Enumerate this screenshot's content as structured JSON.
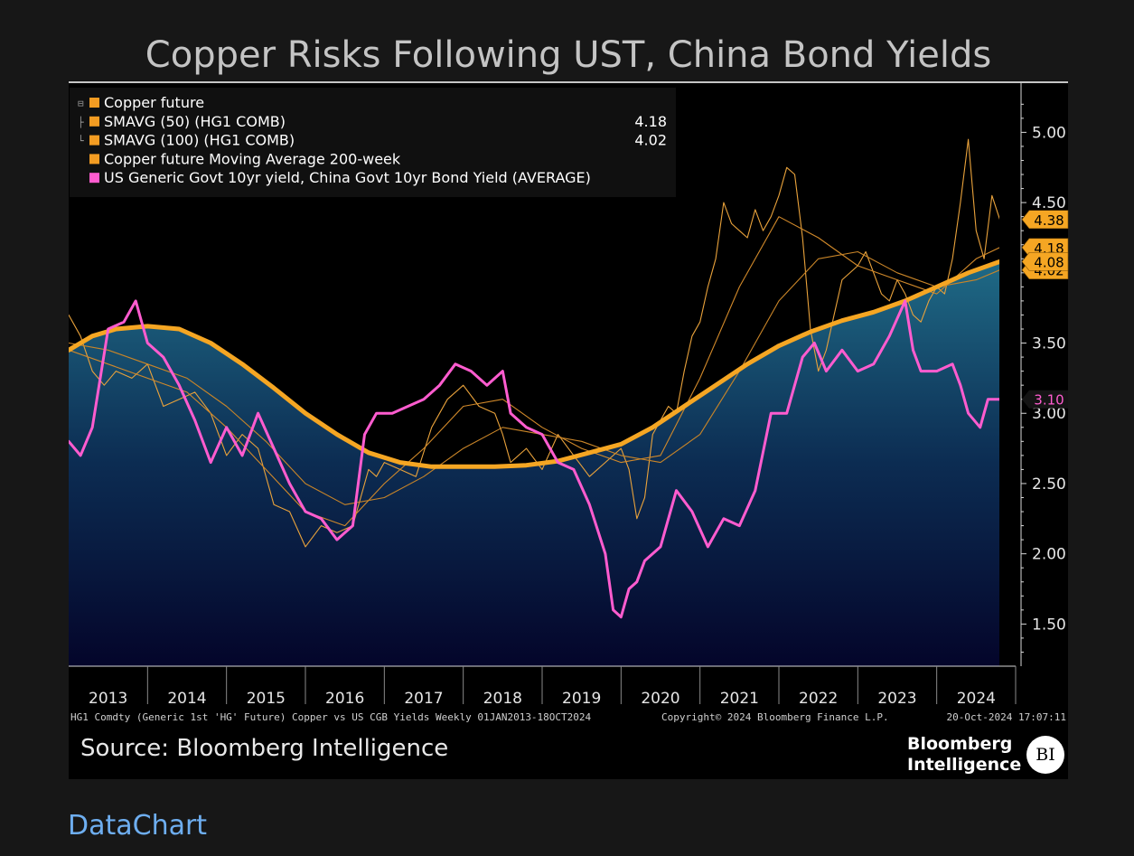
{
  "title": "Copper Risks Following UST, China Bond Yields",
  "footer": {
    "info_left": "HG1 Comdty (Generic 1st 'HG' Future) Copper vs US CGB Yields  Weekly 01JAN2013-18OCT2024",
    "info_mid": "Copyright© 2024 Bloomberg Finance L.P.",
    "info_right": "20-Oct-2024 17:07:11",
    "source": "Source: Bloomberg Intelligence",
    "brand_line1": "Bloomberg",
    "brand_line2": "Intelligence",
    "logo": "BI",
    "link": "DataChart"
  },
  "legend": [
    {
      "label": "Copper future",
      "value": "",
      "color": "#f39c22",
      "bracket": "⊟"
    },
    {
      "label": "SMAVG (50) (HG1 COMB)",
      "value": "4.18",
      "color": "#f39c22",
      "bracket": "├"
    },
    {
      "label": "SMAVG (100) (HG1 COMB)",
      "value": "4.02",
      "color": "#f39c22",
      "bracket": "└"
    },
    {
      "label": "Copper future Moving Average 200-week",
      "value": "",
      "color": "#f39c22",
      "bracket": ""
    },
    {
      "label": "US Generic Govt 10yr yield, China Govt 10yr Bond Yield (AVERAGE)",
      "value": "",
      "color": "#ff5ccf",
      "bracket": ""
    }
  ],
  "chart_data": {
    "type": "line",
    "title": "Copper Risks Following UST, China Bond Yields",
    "x_categories": [
      "2013",
      "2014",
      "2015",
      "2016",
      "2017",
      "2018",
      "2019",
      "2020",
      "2021",
      "2022",
      "2023",
      "2024"
    ],
    "ylim": [
      1.2,
      5.35
    ],
    "y_ticks": [
      1.5,
      2.0,
      2.5,
      3.0,
      3.5,
      4.0,
      4.5,
      5.0
    ],
    "y_tick_labels": [
      "1.50",
      "2.00",
      "2.50",
      "3.00",
      "3.50",
      "4.00",
      "4.50",
      "5.00"
    ],
    "grid": false,
    "legend_position": "top-left",
    "end_labels": [
      {
        "text": "4.38",
        "value": 4.38,
        "kind": "orange"
      },
      {
        "text": "4.18",
        "value": 4.18,
        "kind": "orange"
      },
      {
        "text": "4.02",
        "value": 4.02,
        "kind": "orange"
      },
      {
        "text": "4.08",
        "value": 4.08,
        "kind": "orange"
      },
      {
        "text": "3.10",
        "value": 3.1,
        "kind": "pink"
      }
    ],
    "series": [
      {
        "name": "Copper future",
        "color": "#e9a23b",
        "width": 1.1,
        "x": [
          2013.0,
          2013.15,
          2013.3,
          2013.45,
          2013.6,
          2013.8,
          2014.0,
          2014.2,
          2014.4,
          2014.6,
          2014.8,
          2015.0,
          2015.2,
          2015.4,
          2015.6,
          2015.8,
          2016.0,
          2016.2,
          2016.4,
          2016.6,
          2016.8,
          2016.9,
          2017.0,
          2017.2,
          2017.4,
          2017.6,
          2017.8,
          2018.0,
          2018.2,
          2018.4,
          2018.5,
          2018.6,
          2018.8,
          2019.0,
          2019.2,
          2019.4,
          2019.6,
          2019.8,
          2020.0,
          2020.1,
          2020.2,
          2020.3,
          2020.4,
          2020.5,
          2020.6,
          2020.7,
          2020.8,
          2020.9,
          2021.0,
          2021.1,
          2021.2,
          2021.3,
          2021.4,
          2021.5,
          2021.6,
          2021.7,
          2021.8,
          2021.9,
          2022.0,
          2022.1,
          2022.2,
          2022.3,
          2022.4,
          2022.5,
          2022.6,
          2022.7,
          2022.8,
          2023.0,
          2023.1,
          2023.2,
          2023.3,
          2023.4,
          2023.5,
          2023.6,
          2023.7,
          2023.8,
          2023.9,
          2024.0,
          2024.1,
          2024.2,
          2024.3,
          2024.4,
          2024.5,
          2024.6,
          2024.7,
          2024.8
        ],
        "y": [
          3.7,
          3.55,
          3.3,
          3.2,
          3.3,
          3.25,
          3.35,
          3.05,
          3.1,
          3.15,
          3.0,
          2.7,
          2.85,
          2.75,
          2.35,
          2.3,
          2.05,
          2.2,
          2.15,
          2.2,
          2.6,
          2.55,
          2.65,
          2.6,
          2.55,
          2.9,
          3.1,
          3.2,
          3.05,
          3.0,
          2.85,
          2.65,
          2.75,
          2.6,
          2.85,
          2.7,
          2.55,
          2.65,
          2.75,
          2.6,
          2.25,
          2.4,
          2.85,
          2.95,
          3.05,
          3.0,
          3.3,
          3.55,
          3.65,
          3.9,
          4.1,
          4.5,
          4.35,
          4.3,
          4.25,
          4.45,
          4.3,
          4.4,
          4.55,
          4.75,
          4.7,
          4.25,
          3.6,
          3.3,
          3.45,
          3.7,
          3.95,
          4.05,
          4.15,
          4.0,
          3.85,
          3.8,
          3.95,
          3.85,
          3.7,
          3.65,
          3.8,
          3.9,
          3.85,
          4.1,
          4.5,
          4.95,
          4.3,
          4.1,
          4.55,
          4.38
        ]
      },
      {
        "name": "SMAVG (50) (HG1 COMB)",
        "color": "#d1892a",
        "width": 1.1,
        "x": [
          2013.0,
          2013.5,
          2014.0,
          2014.5,
          2015.0,
          2015.5,
          2016.0,
          2016.5,
          2017.0,
          2017.5,
          2018.0,
          2018.5,
          2019.0,
          2019.5,
          2020.0,
          2020.5,
          2021.0,
          2021.5,
          2022.0,
          2022.5,
          2023.0,
          2023.5,
          2024.0,
          2024.5,
          2024.8
        ],
        "y": [
          3.45,
          3.35,
          3.25,
          3.15,
          2.9,
          2.6,
          2.3,
          2.2,
          2.5,
          2.75,
          3.05,
          3.1,
          2.9,
          2.75,
          2.65,
          2.7,
          3.25,
          3.9,
          4.4,
          4.25,
          4.05,
          3.95,
          3.85,
          4.1,
          4.18
        ]
      },
      {
        "name": "SMAVG (100) (HG1 COMB)",
        "color": "#c98528",
        "width": 1.1,
        "x": [
          2013.0,
          2013.5,
          2014.0,
          2014.5,
          2015.0,
          2015.5,
          2016.0,
          2016.5,
          2017.0,
          2017.5,
          2018.0,
          2018.5,
          2019.0,
          2019.5,
          2020.0,
          2020.5,
          2021.0,
          2021.5,
          2022.0,
          2022.5,
          2023.0,
          2023.5,
          2024.0,
          2024.5,
          2024.8
        ],
        "y": [
          3.5,
          3.45,
          3.35,
          3.25,
          3.05,
          2.8,
          2.5,
          2.35,
          2.4,
          2.55,
          2.75,
          2.9,
          2.85,
          2.8,
          2.7,
          2.65,
          2.85,
          3.3,
          3.8,
          4.1,
          4.15,
          4.0,
          3.9,
          3.95,
          4.02
        ]
      },
      {
        "name": "Copper future Moving Average 200-week",
        "color": "#f5a623",
        "width": 5,
        "x": [
          2013.0,
          2013.3,
          2013.6,
          2014.0,
          2014.4,
          2014.8,
          2015.2,
          2015.6,
          2016.0,
          2016.4,
          2016.8,
          2017.2,
          2017.6,
          2018.0,
          2018.4,
          2018.8,
          2019.2,
          2019.6,
          2020.0,
          2020.4,
          2020.8,
          2021.2,
          2021.6,
          2022.0,
          2022.4,
          2022.8,
          2023.2,
          2023.6,
          2024.0,
          2024.4,
          2024.8
        ],
        "y": [
          3.45,
          3.55,
          3.6,
          3.62,
          3.6,
          3.5,
          3.35,
          3.18,
          3.0,
          2.85,
          2.72,
          2.65,
          2.62,
          2.62,
          2.62,
          2.63,
          2.66,
          2.72,
          2.78,
          2.9,
          3.05,
          3.2,
          3.35,
          3.48,
          3.58,
          3.66,
          3.72,
          3.8,
          3.9,
          4.0,
          4.08
        ]
      },
      {
        "name": "US Generic Govt 10yr yield, China Govt 10yr Bond Yield (AVERAGE)",
        "color": "#ff5ccf",
        "width": 3,
        "x": [
          2013.0,
          2013.15,
          2013.3,
          2013.5,
          2013.7,
          2013.85,
          2014.0,
          2014.2,
          2014.4,
          2014.6,
          2014.8,
          2015.0,
          2015.2,
          2015.4,
          2015.6,
          2015.8,
          2016.0,
          2016.2,
          2016.4,
          2016.6,
          2016.75,
          2016.9,
          2017.1,
          2017.3,
          2017.5,
          2017.7,
          2017.9,
          2018.1,
          2018.3,
          2018.5,
          2018.6,
          2018.8,
          2019.0,
          2019.2,
          2019.4,
          2019.6,
          2019.8,
          2019.9,
          2020.0,
          2020.1,
          2020.2,
          2020.3,
          2020.5,
          2020.7,
          2020.9,
          2021.1,
          2021.3,
          2021.5,
          2021.7,
          2021.9,
          2022.1,
          2022.3,
          2022.45,
          2022.6,
          2022.8,
          2023.0,
          2023.2,
          2023.4,
          2023.6,
          2023.7,
          2023.8,
          2024.0,
          2024.2,
          2024.3,
          2024.4,
          2024.55,
          2024.65,
          2024.8
        ],
        "y": [
          2.8,
          2.7,
          2.9,
          3.6,
          3.65,
          3.8,
          3.5,
          3.4,
          3.2,
          2.95,
          2.65,
          2.9,
          2.7,
          3.0,
          2.75,
          2.5,
          2.3,
          2.25,
          2.1,
          2.2,
          2.85,
          3.0,
          3.0,
          3.05,
          3.1,
          3.2,
          3.35,
          3.3,
          3.2,
          3.3,
          3.0,
          2.9,
          2.85,
          2.65,
          2.6,
          2.35,
          2.0,
          1.6,
          1.55,
          1.75,
          1.8,
          1.95,
          2.05,
          2.45,
          2.3,
          2.05,
          2.25,
          2.2,
          2.45,
          3.0,
          3.0,
          3.4,
          3.5,
          3.3,
          3.45,
          3.3,
          3.35,
          3.55,
          3.8,
          3.45,
          3.3,
          3.3,
          3.35,
          3.2,
          3.0,
          2.9,
          3.1,
          3.1
        ]
      }
    ]
  }
}
